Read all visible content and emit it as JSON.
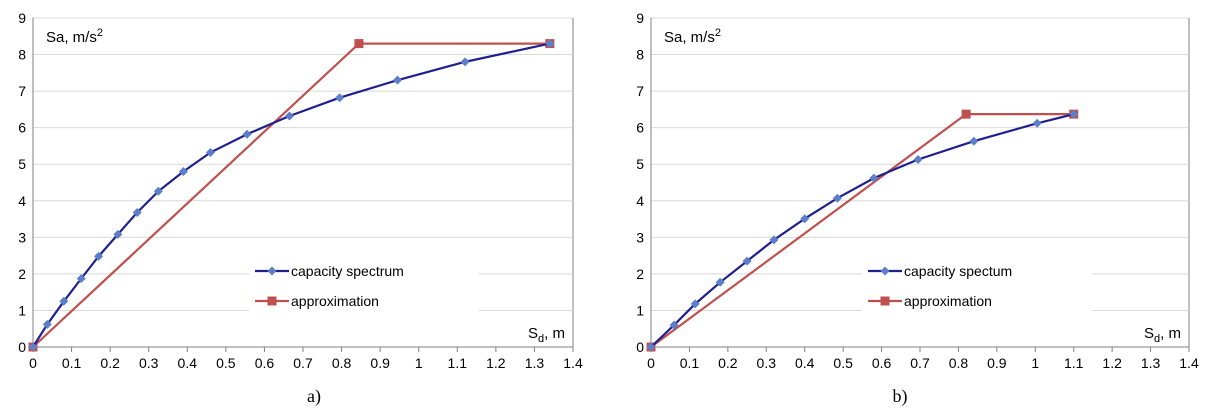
{
  "colors": {
    "capacity": "#1F1F8F",
    "capacity_marker": "#5B7FC8",
    "approximation": "#C0504D",
    "grid": "#D9D9D9",
    "axis": "#808080"
  },
  "chart_data": [
    {
      "type": "line",
      "panel_label": "a)",
      "ylabel_main": "Sa, m/s",
      "ylabel_sup": "2",
      "xlabel_main": "S",
      "xlabel_sub": "d",
      "xlabel_tail": ", m",
      "xlim": [
        0,
        1.4
      ],
      "ylim": [
        0,
        9
      ],
      "xticks": [
        "0",
        "0.1",
        "0.2",
        "0.3",
        "0.4",
        "0.5",
        "0.6",
        "0.7",
        "0.8",
        "0.9",
        "1",
        "1.1",
        "1.2",
        "1.3",
        "1.4"
      ],
      "yticks": [
        "0",
        "1",
        "2",
        "3",
        "4",
        "5",
        "6",
        "7",
        "8",
        "9"
      ],
      "grid": "horizontal",
      "legend_position": "lower-right",
      "series": [
        {
          "name": "capacity spectrum",
          "marker": "diamond",
          "x": [
            0,
            0.037,
            0.08,
            0.125,
            0.17,
            0.22,
            0.27,
            0.325,
            0.39,
            0.46,
            0.555,
            0.665,
            0.795,
            0.945,
            1.12,
            1.34
          ],
          "y": [
            0,
            0.62,
            1.25,
            1.87,
            2.48,
            3.08,
            3.68,
            4.26,
            4.8,
            5.32,
            5.82,
            6.32,
            6.82,
            7.3,
            7.8,
            8.3
          ]
        },
        {
          "name": "approximation",
          "marker": "square",
          "x": [
            0,
            0.845,
            1.34
          ],
          "y": [
            0,
            8.3,
            8.3
          ]
        }
      ]
    },
    {
      "type": "line",
      "panel_label": "b)",
      "ylabel_main": "Sa, m/s",
      "ylabel_sup": "2",
      "xlabel_main": "S",
      "xlabel_sub": "d",
      "xlabel_tail": ", m",
      "xlim": [
        0,
        1.4
      ],
      "ylim": [
        0,
        9
      ],
      "xticks": [
        "0",
        "0.1",
        "0.2",
        "0.3",
        "0.4",
        "0.5",
        "0.6",
        "0.7",
        "0.8",
        "0.9",
        "1",
        "1.1",
        "1.2",
        "1.3",
        "1.4"
      ],
      "yticks": [
        "0",
        "1",
        "2",
        "3",
        "4",
        "5",
        "6",
        "7",
        "8",
        "9"
      ],
      "grid": "horizontal",
      "legend_position": "lower-right",
      "series": [
        {
          "name": "capacity spectum",
          "marker": "diamond",
          "x": [
            0,
            0.06,
            0.115,
            0.18,
            0.25,
            0.32,
            0.4,
            0.485,
            0.58,
            0.695,
            0.84,
            1.005,
            1.1
          ],
          "y": [
            0,
            0.6,
            1.18,
            1.77,
            2.35,
            2.93,
            3.51,
            4.07,
            4.62,
            5.13,
            5.63,
            6.12,
            6.37
          ]
        },
        {
          "name": "approximation",
          "marker": "square",
          "x": [
            0,
            0.82,
            1.1
          ],
          "y": [
            0,
            6.37,
            6.37
          ]
        }
      ]
    }
  ]
}
